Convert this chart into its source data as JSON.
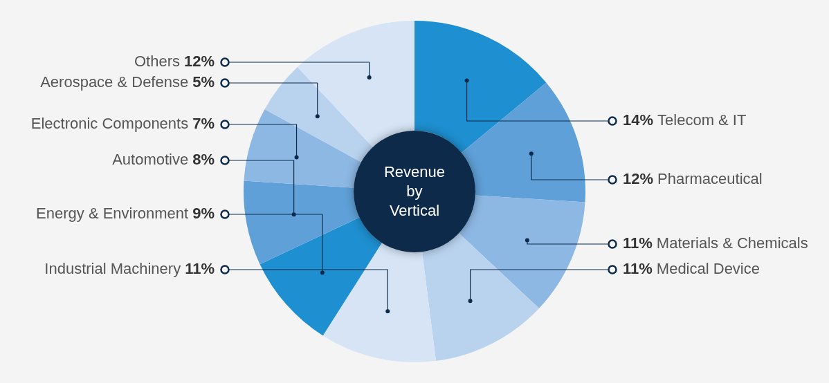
{
  "chart_data": {
    "type": "donut",
    "title": "Revenue by Vertical",
    "categories": [
      "Telecom & IT",
      "Pharmaceutical",
      "Materials & Chemicals",
      "Medical Device",
      "Industrial Machinery",
      "Energy & Environment",
      "Automotive",
      "Electronic Components",
      "Aerospace & Defense",
      "Others"
    ],
    "values": [
      14,
      12,
      11,
      11,
      11,
      9,
      8,
      7,
      5,
      12
    ],
    "value_labels": [
      "14%",
      "12%",
      "11%",
      "11%",
      "11%",
      "9%",
      "8%",
      "7%",
      "5%",
      "12%"
    ],
    "colors": [
      "#1e8fd0",
      "#5fa0d8",
      "#8db8e4",
      "#b9d3ef",
      "#d6e4f5",
      "#1e8fd0",
      "#5fa0d8",
      "#8db8e4",
      "#b9d3ef",
      "#d6e4f5"
    ]
  }
}
